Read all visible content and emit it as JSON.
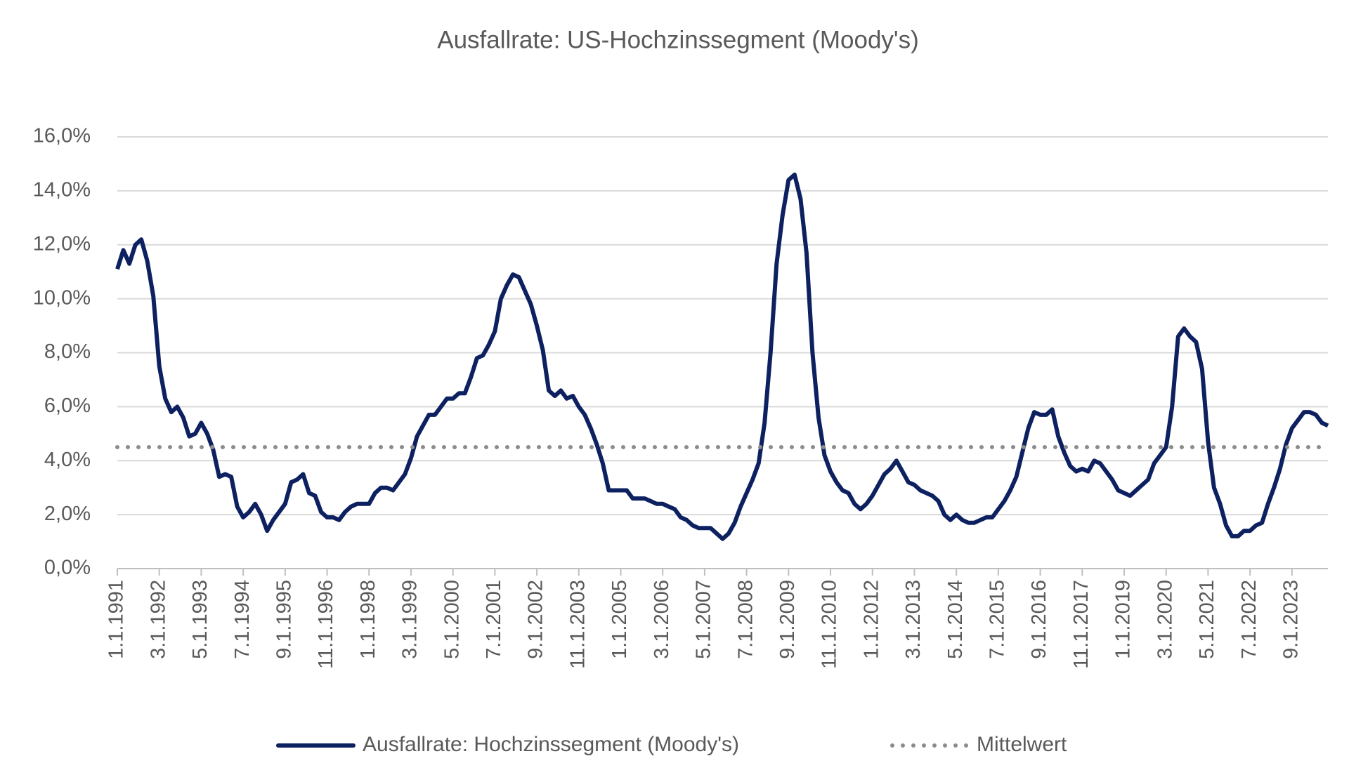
{
  "chart_data": {
    "type": "line",
    "title": "Ausfallrate: US-Hochzinssegment (Moody's)",
    "categories": [
      "1.1.1991",
      null,
      null,
      null,
      null,
      null,
      null,
      "3.1.1992",
      null,
      null,
      null,
      null,
      null,
      null,
      "5.1.1993",
      null,
      null,
      null,
      null,
      null,
      null,
      "7.1.1994",
      null,
      null,
      null,
      null,
      null,
      null,
      "9.1.1995",
      null,
      null,
      null,
      null,
      null,
      null,
      "11.1.1996",
      null,
      null,
      null,
      null,
      null,
      null,
      "1.1.1998",
      null,
      null,
      null,
      null,
      null,
      null,
      "3.1.1999",
      null,
      null,
      null,
      null,
      null,
      null,
      "5.1.2000",
      null,
      null,
      null,
      null,
      null,
      null,
      "7.1.2001",
      null,
      null,
      null,
      null,
      null,
      null,
      "9.1.2002",
      null,
      null,
      null,
      null,
      null,
      null,
      "11.1.2003",
      null,
      null,
      null,
      null,
      null,
      null,
      "1.1.2005",
      null,
      null,
      null,
      null,
      null,
      null,
      "3.1.2006",
      null,
      null,
      null,
      null,
      null,
      null,
      "5.1.2007",
      null,
      null,
      null,
      null,
      null,
      null,
      "7.1.2008",
      null,
      null,
      null,
      null,
      null,
      null,
      "9.1.2009",
      null,
      null,
      null,
      null,
      null,
      null,
      "11.1.2010",
      null,
      null,
      null,
      null,
      null,
      null,
      "1.1.2012",
      null,
      null,
      null,
      null,
      null,
      null,
      "3.1.2013",
      null,
      null,
      null,
      null,
      null,
      null,
      "5.1.2014",
      null,
      null,
      null,
      null,
      null,
      null,
      "7.1.2015",
      null,
      null,
      null,
      null,
      null,
      null,
      "9.1.2016",
      null,
      null,
      null,
      null,
      null,
      null,
      "11.1.2017",
      null,
      null,
      null,
      null,
      null,
      null,
      "1.1.2019",
      null,
      null,
      null,
      null,
      null,
      null,
      "3.1.2020",
      null,
      null,
      null,
      null,
      null,
      null,
      "5.1.2021",
      null,
      null,
      null,
      null,
      null,
      null,
      "7.1.2022",
      null,
      null,
      null,
      null,
      null,
      null,
      "9.1.2023",
      null,
      null,
      null,
      null,
      null,
      null
    ],
    "series": [
      {
        "name": "Ausfallrate: Hochzinssegment (Moody's)",
        "color": "#0d2160",
        "values": [
          11.1,
          11.8,
          11.3,
          12.0,
          12.2,
          11.4,
          10.1,
          7.5,
          6.3,
          5.8,
          6.0,
          5.6,
          4.9,
          5.0,
          5.4,
          5.0,
          4.4,
          3.4,
          3.5,
          3.4,
          2.3,
          1.9,
          2.1,
          2.4,
          2.0,
          1.4,
          1.8,
          2.1,
          2.4,
          3.2,
          3.3,
          3.5,
          2.8,
          2.7,
          2.1,
          1.9,
          1.9,
          1.8,
          2.1,
          2.3,
          2.4,
          2.4,
          2.4,
          2.8,
          3.0,
          3.0,
          2.9,
          3.2,
          3.5,
          4.1,
          4.9,
          5.3,
          5.7,
          5.7,
          6.0,
          6.3,
          6.3,
          6.5,
          6.5,
          7.1,
          7.8,
          7.9,
          8.3,
          8.8,
          10.0,
          10.5,
          10.9,
          10.8,
          10.3,
          9.8,
          9.0,
          8.1,
          6.6,
          6.4,
          6.6,
          6.3,
          6.4,
          6.0,
          5.7,
          5.2,
          4.6,
          3.9,
          2.9,
          2.9,
          2.9,
          2.9,
          2.6,
          2.6,
          2.6,
          2.5,
          2.4,
          2.4,
          2.3,
          2.2,
          1.9,
          1.8,
          1.6,
          1.5,
          1.5,
          1.5,
          1.3,
          1.1,
          1.3,
          1.7,
          2.3,
          2.8,
          3.3,
          3.9,
          5.4,
          8.0,
          11.3,
          13.1,
          14.4,
          14.6,
          13.7,
          11.7,
          8.0,
          5.6,
          4.2,
          3.6,
          3.2,
          2.9,
          2.8,
          2.4,
          2.2,
          2.4,
          2.7,
          3.1,
          3.5,
          3.7,
          4.0,
          3.6,
          3.2,
          3.1,
          2.9,
          2.8,
          2.7,
          2.5,
          2.0,
          1.8,
          2.0,
          1.8,
          1.7,
          1.7,
          1.8,
          1.9,
          1.9,
          2.2,
          2.5,
          2.9,
          3.4,
          4.3,
          5.2,
          5.8,
          5.7,
          5.7,
          5.9,
          4.9,
          4.3,
          3.8,
          3.6,
          3.7,
          3.6,
          4.0,
          3.9,
          3.6,
          3.3,
          2.9,
          2.8,
          2.7,
          2.9,
          3.1,
          3.3,
          3.9,
          4.2,
          4.5,
          6.0,
          8.6,
          8.9,
          8.6,
          8.4,
          7.4,
          4.7,
          3.0,
          2.4,
          1.6,
          1.2,
          1.2,
          1.4,
          1.4,
          1.6,
          1.7,
          2.4,
          3.0,
          3.7,
          4.6,
          5.2,
          5.5,
          5.8,
          5.8,
          5.7,
          5.4,
          5.3
        ]
      },
      {
        "name": "Mittelwert",
        "color": "#8c8c8c",
        "value": 4.5,
        "style": "dotted"
      }
    ],
    "ylim": [
      0,
      16
    ],
    "yticks": [
      {
        "value": 0,
        "label": "0,0%"
      },
      {
        "value": 2,
        "label": "2,0%"
      },
      {
        "value": 4,
        "label": "4,0%"
      },
      {
        "value": 6,
        "label": "6,0%"
      },
      {
        "value": 8,
        "label": "8,0%"
      },
      {
        "value": 10,
        "label": "10,0%"
      },
      {
        "value": 12,
        "label": "12,0%"
      },
      {
        "value": 14,
        "label": "14,0%"
      },
      {
        "value": 16,
        "label": "16,0%"
      }
    ],
    "grid": true,
    "legend": "bottom"
  }
}
